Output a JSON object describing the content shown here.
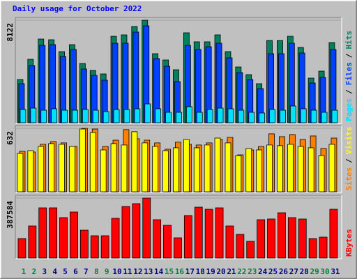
{
  "chart_data": [
    {
      "type": "bar",
      "title": "Daily usage for October 2022",
      "ylim": [
        0,
        8122
      ],
      "yticks": [
        8122
      ],
      "legend_separator": "/",
      "series": [
        {
          "name": "Hits",
          "color": "#00805c",
          "values": [
            3426,
            5028,
            6630,
            6575,
            5636,
            6188,
            4696,
            4144,
            3868,
            6851,
            6962,
            7625,
            8122,
            5470,
            4972,
            4199,
            7127,
            6409,
            6409,
            6962,
            5636,
            4420,
            3812,
            3094,
            6520,
            6520,
            6851,
            5967,
            3536,
            4089,
            6354
          ]
        },
        {
          "name": "Files",
          "color": "#0040ff",
          "values": [
            3094,
            4530,
            6133,
            6188,
            5249,
            5801,
            4254,
            3757,
            3370,
            6299,
            6299,
            7183,
            7680,
            5083,
            4475,
            3260,
            6133,
            5801,
            6022,
            6299,
            5138,
            3978,
            3426,
            2707,
            5470,
            5470,
            6299,
            5525,
            3149,
            3591,
            5801
          ]
        },
        {
          "name": "Pages",
          "color": "#00e0ff",
          "values": [
            1050,
            1160,
            995,
            1105,
            995,
            995,
            1050,
            995,
            884,
            1050,
            1050,
            1105,
            1492,
            1105,
            829,
            829,
            1271,
            829,
            1050,
            1160,
            1105,
            995,
            829,
            774,
            1050,
            995,
            1326,
            1105,
            995,
            829,
            995
          ]
        }
      ]
    },
    {
      "type": "bar",
      "ylim": [
        0,
        632
      ],
      "yticks": [
        632
      ],
      "legend_separator": "/",
      "series": [
        {
          "name": "Visits",
          "color": "#ffff00",
          "values": [
            382,
            410,
            452,
            480,
            473,
            452,
            625,
            591,
            417,
            480,
            466,
            598,
            487,
            452,
            410,
            438,
            521,
            438,
            466,
            535,
            487,
            361,
            431,
            417,
            466,
            459,
            473,
            452,
            438,
            361,
            473
          ]
        },
        {
          "name": "Sites",
          "color": "#ff8000",
          "values": [
            403,
            396,
            473,
            500,
            487,
            452,
            632,
            625,
            452,
            514,
            619,
            528,
            514,
            487,
            424,
            494,
            473,
            466,
            487,
            521,
            542,
            368,
            417,
            452,
            577,
            549,
            570,
            521,
            556,
            431,
            535
          ]
        }
      ]
    },
    {
      "type": "bar",
      "ylim": [
        0,
        387584
      ],
      "yticks": [
        387584
      ],
      "categories": [
        "1",
        "2",
        "3",
        "4",
        "5",
        "6",
        "7",
        "8",
        "9",
        "10",
        "11",
        "12",
        "13",
        "14",
        "15",
        "16",
        "17",
        "18",
        "19",
        "20",
        "21",
        "22",
        "23",
        "24",
        "25",
        "26",
        "27",
        "28",
        "29",
        "30",
        "31"
      ],
      "category_colors": [
        "#008040",
        "#008040",
        "#000080",
        "#000080",
        "#000080",
        "#000080",
        "#000080",
        "#008040",
        "#008040",
        "#000080",
        "#000080",
        "#000080",
        "#000080",
        "#000080",
        "#008040",
        "#008040",
        "#000080",
        "#000080",
        "#000080",
        "#000080",
        "#000080",
        "#008040",
        "#008040",
        "#000080",
        "#000080",
        "#000080",
        "#000080",
        "#000080",
        "#008040",
        "#008040",
        "#000080"
      ],
      "series": [
        {
          "name": "KBytes",
          "color": "#ff0000",
          "values": [
            126196,
            207322,
            324504,
            324504,
            261406,
            297462,
            180280,
            144224,
            144224,
            256899,
            333518,
            351546,
            387584,
            247885,
            211829,
            130703,
            274927,
            329011,
            315490,
            324504,
            207322,
            153238,
            108168,
            247885,
            252392,
            292955,
            261406,
            252392,
            126196,
            135210,
            315490
          ]
        }
      ]
    }
  ]
}
